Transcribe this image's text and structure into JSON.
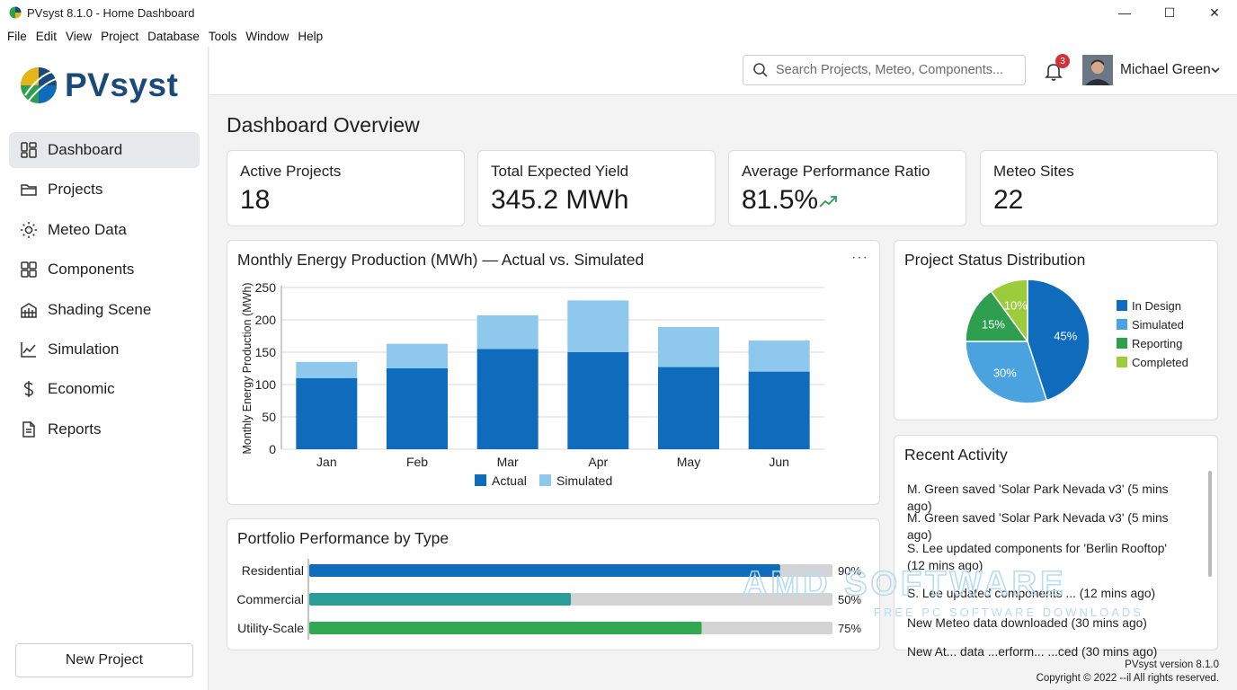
{
  "window": {
    "title": "PVsyst 8.1.0 - Home Dashboard",
    "controls": {
      "minimize": "—",
      "maximize": "☐",
      "close": "✕"
    }
  },
  "menu": [
    "File",
    "Edit",
    "View",
    "Project",
    "Database",
    "Tools",
    "Window",
    "Help"
  ],
  "sidebar": {
    "logo_text": "PVsyst",
    "items": [
      {
        "label": "Dashboard",
        "icon": "dashboard-icon",
        "active": true
      },
      {
        "label": "Projects",
        "icon": "folder-icon"
      },
      {
        "label": "Meteo Data",
        "icon": "sun-icon"
      },
      {
        "label": "Components",
        "icon": "grid-icon"
      },
      {
        "label": "Shading Scene",
        "icon": "building-icon"
      },
      {
        "label": "Simulation",
        "icon": "line-chart-icon"
      },
      {
        "label": "Economic",
        "icon": "dollar-icon"
      },
      {
        "label": "Reports",
        "icon": "document-icon"
      }
    ],
    "new_project_label": "New Project"
  },
  "header": {
    "search_placeholder": "Search Projects, Meteo, Components...",
    "notification_count": "3",
    "user_name": "Michael Green"
  },
  "main": {
    "page_title": "Dashboard Overview",
    "kpis": [
      {
        "label": "Active Projects",
        "value": "18"
      },
      {
        "label": "Total Expected Yield",
        "value": "345.2 MWh"
      },
      {
        "label": "Average Performance Ratio",
        "value": "81.5%",
        "trend": "up"
      },
      {
        "label": "Meteo Sites",
        "value": "22"
      }
    ],
    "energy_chart_title": "Monthly Energy Production (MWh) — Actual vs. Simulated",
    "energy_more": "···",
    "status_title": "Project Status Distribution",
    "portfolio_title": "Portfolio Performance by Type",
    "activity_title": "Recent Activity",
    "activity": [
      "M. Green saved 'Solar Park Nevada v3' (5 mins ago)",
      "M. Green saved 'Solar Park Nevada v3' (5 mins ago)",
      "S. Lee updated components for 'Berlin Rooftop' (12 mins ago)",
      "S. Lee updated components ... (12 mins ago)",
      "New Meteo data downloaded (30 mins ago)",
      "New At... data ...erform... ...ced (30 mins ago)"
    ]
  },
  "footer": {
    "version": "PVsyst version 8.1.0",
    "copyright": "Copyright © 2022 --il All rights reserved."
  },
  "watermark": {
    "line1": "AMD SOFTWARE",
    "line2": "FREE PC SOFTWARE DOWNLOADS"
  },
  "colors": {
    "actual": "#0f6cbd",
    "simulated": "#8ec8ec",
    "in_design": "#0f6cbd",
    "simulated_slice": "#4aa3df",
    "reporting": "#2e9e4f",
    "completed": "#9ccc3c",
    "residential_bar": "#0f6cbd",
    "commercial_bar": "#2a9d98",
    "utility_bar": "#33a853"
  },
  "chart_data": [
    {
      "type": "bar",
      "stacked": true,
      "title": "Monthly Energy Production (MWh) — Actual vs. Simulated",
      "ylabel": "Monthly Energy Production (MWh)",
      "xlabel": "",
      "categories": [
        "Jan",
        "Feb",
        "Mar",
        "Apr",
        "May",
        "Jun"
      ],
      "series": [
        {
          "name": "Actual",
          "values": [
            110,
            125,
            155,
            150,
            127,
            120
          ]
        },
        {
          "name": "Simulated",
          "values": [
            25,
            38,
            52,
            80,
            62,
            48
          ]
        }
      ],
      "ylim": [
        0,
        250
      ],
      "yticks": [
        0,
        50,
        100,
        150,
        200,
        250
      ],
      "grid": true,
      "legend": "bottom"
    },
    {
      "type": "pie",
      "title": "Project Status Distribution",
      "categories": [
        "In Design",
        "Simulated",
        "Reporting",
        "Completed"
      ],
      "values": [
        45,
        30,
        15,
        10
      ],
      "labels": [
        "45%",
        "30%",
        "15%",
        "10%"
      ],
      "legend": "right"
    },
    {
      "type": "bar",
      "orientation": "horizontal",
      "title": "Portfolio Performance by Type",
      "categories": [
        "Residential",
        "Commercial",
        "Utility-Scale"
      ],
      "values": [
        90,
        50,
        75
      ],
      "value_labels": [
        "90%",
        "50%",
        "75%"
      ],
      "xlim": [
        0,
        100
      ]
    }
  ]
}
